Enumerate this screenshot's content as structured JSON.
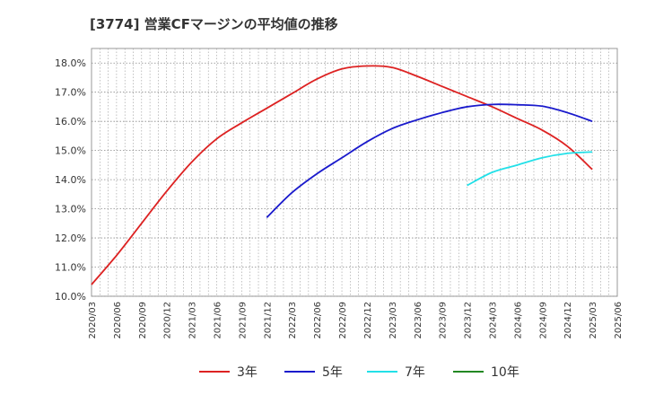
{
  "chart_data": {
    "type": "line",
    "title": "[3774]  営業CFマージンの平均値の推移",
    "xlabel": "",
    "ylabel": "",
    "x_ticks": [
      "2020/03",
      "2020/06",
      "2020/09",
      "2020/12",
      "2021/03",
      "2021/06",
      "2021/09",
      "2021/12",
      "2022/03",
      "2022/06",
      "2022/09",
      "2022/12",
      "2023/03",
      "2023/06",
      "2023/09",
      "2023/12",
      "2024/03",
      "2024/06",
      "2024/09",
      "2024/12",
      "2025/03",
      "2025/06"
    ],
    "y_ticks": [
      "10.0%",
      "11.0%",
      "12.0%",
      "13.0%",
      "14.0%",
      "15.0%",
      "16.0%",
      "17.0%",
      "18.0%"
    ],
    "ylim": [
      10.0,
      18.5
    ],
    "grid": true,
    "legend_position": "bottom",
    "series": [
      {
        "name": "3年",
        "color": "#dd2222",
        "x": [
          "2020/03",
          "2020/06",
          "2020/09",
          "2020/12",
          "2021/03",
          "2021/06",
          "2021/09",
          "2021/12",
          "2022/03",
          "2022/06",
          "2022/09",
          "2022/12",
          "2023/03",
          "2023/06",
          "2023/09",
          "2023/12",
          "2024/03",
          "2024/06",
          "2024/09",
          "2024/12",
          "2025/03"
        ],
        "values": [
          10.4,
          11.4,
          12.5,
          13.6,
          14.6,
          15.4,
          15.95,
          16.45,
          16.95,
          17.45,
          17.8,
          17.9,
          17.85,
          17.55,
          17.2,
          16.85,
          16.5,
          16.1,
          15.7,
          15.15,
          14.35
        ]
      },
      {
        "name": "5年",
        "color": "#1a1acc",
        "x": [
          "2021/12",
          "2022/03",
          "2022/06",
          "2022/09",
          "2022/12",
          "2023/03",
          "2023/06",
          "2023/09",
          "2023/12",
          "2024/03",
          "2024/06",
          "2024/09",
          "2024/12",
          "2025/03"
        ],
        "values": [
          12.7,
          13.55,
          14.2,
          14.75,
          15.3,
          15.75,
          16.05,
          16.3,
          16.5,
          16.58,
          16.57,
          16.52,
          16.3,
          16.0
        ]
      },
      {
        "name": "7年",
        "color": "#22e0e8",
        "x": [
          "2023/12",
          "2024/03",
          "2024/06",
          "2024/09",
          "2024/12",
          "2025/03"
        ],
        "values": [
          13.8,
          14.25,
          14.5,
          14.75,
          14.9,
          14.95
        ]
      },
      {
        "name": "10年",
        "color": "#228822",
        "x": [],
        "values": []
      }
    ]
  }
}
